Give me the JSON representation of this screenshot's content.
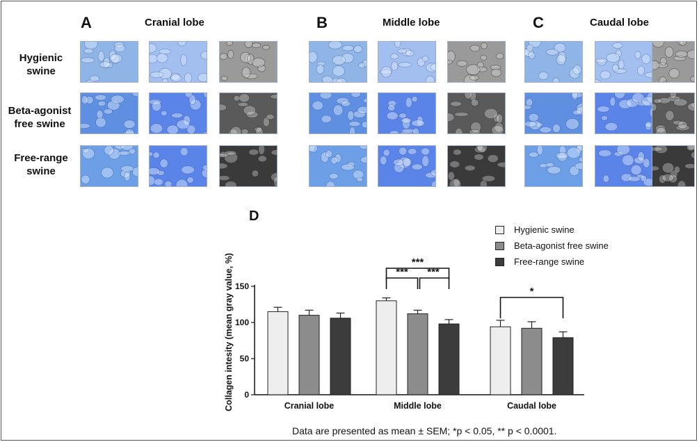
{
  "panels": {
    "a": {
      "letter": "A",
      "title": "Cranial lobe"
    },
    "b": {
      "letter": "B",
      "title": "Middle lobe"
    },
    "c": {
      "letter": "C",
      "title": "Caudal lobe"
    },
    "d": {
      "letter": "D"
    }
  },
  "row_labels": [
    "Hygienic\nswine",
    "Beta-agonist\nfree swine",
    "Free-range\nswine"
  ],
  "colors": {
    "hygienic": "#eeeeee",
    "beta_agonist": "#8c8c8c",
    "free_range": "#3c3c3c",
    "stain_blue": "#4f86dc",
    "stain_gray": "#777777"
  },
  "chart_data": {
    "type": "bar",
    "categories": [
      "Cranial lobe",
      "Middle lobe",
      "Caudal lobe"
    ],
    "series": [
      {
        "name": "Hygienic swine",
        "values": [
          115,
          130,
          94
        ],
        "errors": [
          6,
          4,
          9
        ]
      },
      {
        "name": "Beta-agonist free swine",
        "values": [
          110,
          112,
          92
        ],
        "errors": [
          7,
          5,
          9
        ]
      },
      {
        "name": "Free-range swine",
        "values": [
          106,
          98,
          79
        ],
        "errors": [
          7,
          6,
          8
        ]
      }
    ],
    "ylabel": "Collagen intesity (mean gray value, %)",
    "ylim": [
      0,
      150
    ],
    "yticks": [
      0,
      50,
      100,
      150
    ],
    "significance": [
      {
        "category": "Middle lobe",
        "from": 0,
        "to": 1,
        "label": "***"
      },
      {
        "category": "Middle lobe",
        "from": 1,
        "to": 2,
        "label": "***"
      },
      {
        "category": "Middle lobe",
        "from": 0,
        "to": 2,
        "label": "***"
      },
      {
        "category": "Caudal lobe",
        "from": 0,
        "to": 2,
        "label": "*"
      }
    ],
    "legend_position": "top-right"
  },
  "footnote": "Data are presented as mean ± SEM;  *p < 0.05, ** p < 0.0001."
}
